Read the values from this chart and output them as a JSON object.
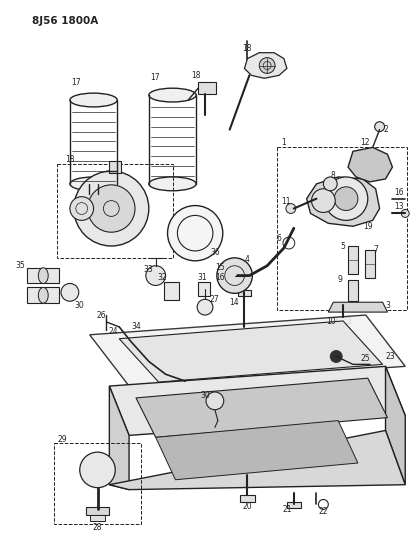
{
  "title": "8J56 1800A",
  "bg_color": "#ffffff",
  "lc": "#222222",
  "fig_width": 4.13,
  "fig_height": 5.33,
  "dpi": 100
}
